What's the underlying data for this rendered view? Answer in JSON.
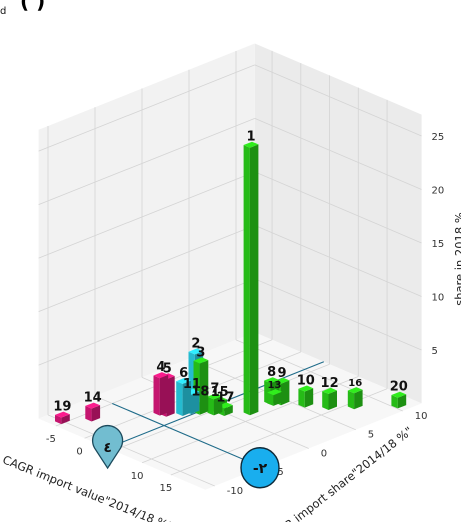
{
  "chart_data": {
    "type": "bar",
    "projection": "3d",
    "title_fragment": "(       )",
    "title_left_fragment": "d",
    "xlabel": "CAGR import value\"2014/18 %\"",
    "ylabel": "CAGR import share\"2014/18 %\"",
    "zlabel": "share in 2018 %",
    "xlim": [
      -8,
      21
    ],
    "ylim": [
      -11,
      12
    ],
    "zlim": [
      0,
      27
    ],
    "x_ticks": [
      -5,
      0,
      5,
      10,
      15
    ],
    "y_ticks": [
      -10,
      -5,
      0,
      5,
      10
    ],
    "z_ticks": [
      5,
      10,
      15,
      20,
      25
    ],
    "grid": true,
    "colors": {
      "magenta": "#e0187e",
      "cyan": "#2ad4ec",
      "green": "#2bd41a"
    },
    "bars": [
      {
        "label": "1",
        "x": 8.5,
        "y": 1.5,
        "z": 25,
        "color": "green"
      },
      {
        "label": "2",
        "x": 3.0,
        "y": -1.0,
        "z": 5.3,
        "color": "cyan"
      },
      {
        "label": "3",
        "x": 4.2,
        "y": -1.2,
        "z": 4.8,
        "color": "green"
      },
      {
        "label": "4",
        "x": 1.0,
        "y": -3.5,
        "z": 3.5,
        "color": "magenta"
      },
      {
        "label": "5",
        "x": 1.8,
        "y": -3.3,
        "z": 3.5,
        "color": "magenta"
      },
      {
        "label": "6",
        "x": 3.0,
        "y": -2.3,
        "z": 3.0,
        "color": "cyan"
      },
      {
        "label": "7",
        "x": 5.5,
        "y": -0.5,
        "z": 1.5,
        "color": "green"
      },
      {
        "label": "8",
        "x": 8.0,
        "y": 4.0,
        "z": 2.0,
        "color": "green"
      },
      {
        "label": "9",
        "x": 9.0,
        "y": 4.5,
        "z": 2.0,
        "color": "green"
      },
      {
        "label": "10",
        "x": 11.5,
        "y": 5.5,
        "z": 1.5,
        "color": "green"
      },
      {
        "label": "11",
        "x": 3.3,
        "y": -1.6,
        "z": 1.8,
        "color": "cyan"
      },
      {
        "label": "12",
        "x": 14.0,
        "y": 6.5,
        "z": 1.5,
        "color": "green"
      },
      {
        "label": "13",
        "x": 8.5,
        "y": 4.0,
        "z": 1.0,
        "color": "green"
      },
      {
        "label": "14",
        "x": -3.5,
        "y": -8.0,
        "z": 1.2,
        "color": "magenta"
      },
      {
        "label": "15",
        "x": 5.5,
        "y": 0.0,
        "z": 1.0,
        "color": "green"
      },
      {
        "label": "16",
        "x": 16.0,
        "y": 8.0,
        "z": 1.5,
        "color": "green"
      },
      {
        "label": "17",
        "x": 6.5,
        "y": 0.0,
        "z": 0.7,
        "color": "green"
      },
      {
        "label": "18",
        "x": 3.8,
        "y": -1.0,
        "z": 1.0,
        "color": "cyan"
      },
      {
        "label": "19",
        "x": -5.5,
        "y": -10.0,
        "z": 0.6,
        "color": "magenta"
      },
      {
        "label": "20",
        "x": 19.5,
        "y": 10.5,
        "z": 1.0,
        "color": "green"
      }
    ],
    "reference_lines": [
      {
        "from": {
          "x": -5,
          "y": -5
        },
        "to": {
          "x": 20,
          "y": -5
        }
      },
      {
        "from": {
          "x": 4,
          "y": -11
        },
        "to": {
          "x": 4,
          "y": 12
        }
      }
    ],
    "markers": [
      {
        "text": "٤",
        "shape": "pin",
        "x": 4,
        "y": -11,
        "color": "#72bdd0"
      },
      {
        "text": "-٢",
        "shape": "circle",
        "x": 20,
        "y": -5,
        "color": "#19aeee"
      }
    ]
  }
}
